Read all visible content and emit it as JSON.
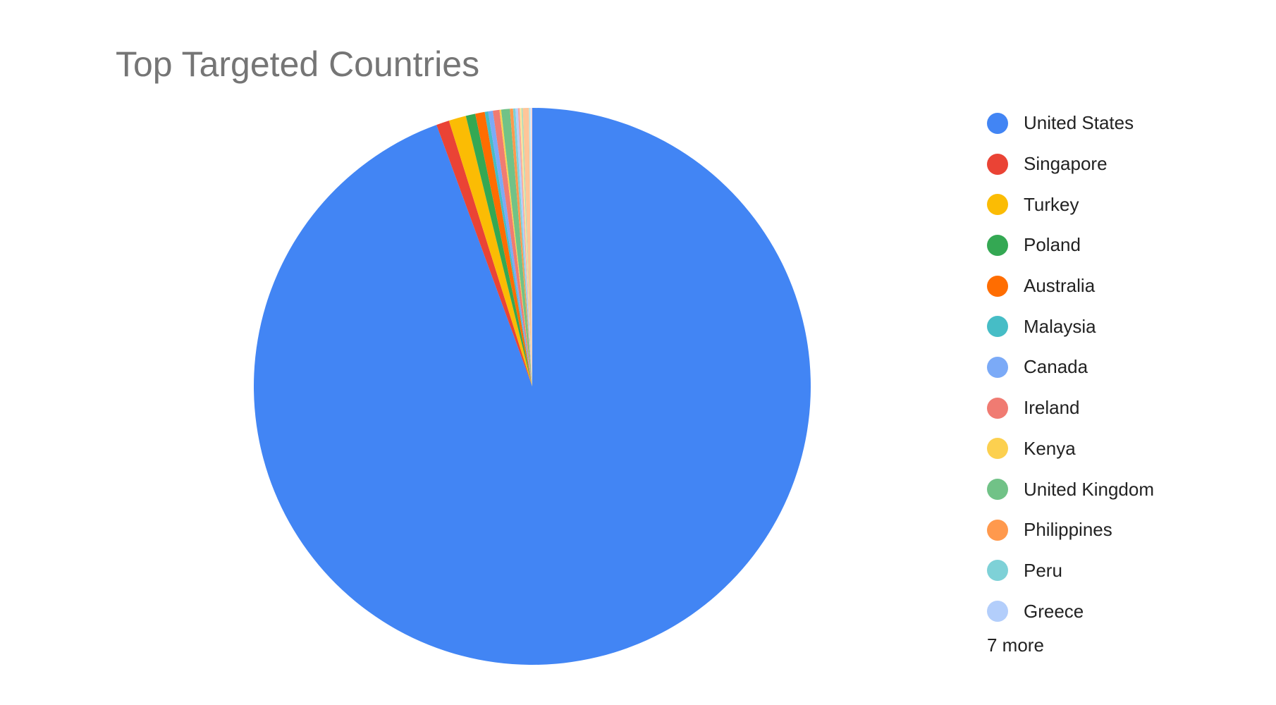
{
  "chart_data": {
    "type": "pie",
    "title": "Top Targeted Countries",
    "legend_position": "right",
    "slices": [
      {
        "label": "United States",
        "value": 94.3,
        "color": "#4285f4"
      },
      {
        "label": "Singapore",
        "value": 0.75,
        "color": "#ea4335"
      },
      {
        "label": "Turkey",
        "value": 1.0,
        "color": "#fbbc04"
      },
      {
        "label": "Poland",
        "value": 0.55,
        "color": "#34a853"
      },
      {
        "label": "Australia",
        "value": 0.55,
        "color": "#ff6d01"
      },
      {
        "label": "Malaysia",
        "value": 0.2,
        "color": "#46bdc6"
      },
      {
        "label": "Canada",
        "value": 0.27,
        "color": "#7baaf7"
      },
      {
        "label": "Ireland",
        "value": 0.38,
        "color": "#f07b72"
      },
      {
        "label": "Kenya",
        "value": 0.1,
        "color": "#fcd04f"
      },
      {
        "label": "United Kingdom",
        "value": 0.5,
        "color": "#71c287"
      },
      {
        "label": "Philippines",
        "value": 0.18,
        "color": "#ff994d"
      },
      {
        "label": "Peru",
        "value": 0.14,
        "color": "#7ed1d7"
      },
      {
        "label": "Greece",
        "value": 0.14,
        "color": "#b3cefb"
      },
      {
        "label": "",
        "value": 0.1,
        "color": "#f7a7a0"
      },
      {
        "label": "",
        "value": 0.1,
        "color": "#fde49b"
      },
      {
        "label": "",
        "value": 0.08,
        "color": "#aedcba"
      },
      {
        "label": "",
        "value": 0.35,
        "color": "#ffc599"
      },
      {
        "label": "",
        "value": 0.07,
        "color": "#b5e8eb"
      },
      {
        "label": "",
        "value": 0.06,
        "color": "#d9e6fc"
      },
      {
        "label": "",
        "value": 0.06,
        "color": "#fbd3cf"
      }
    ],
    "legend_visible_count": 13,
    "more_label": "7 more"
  }
}
